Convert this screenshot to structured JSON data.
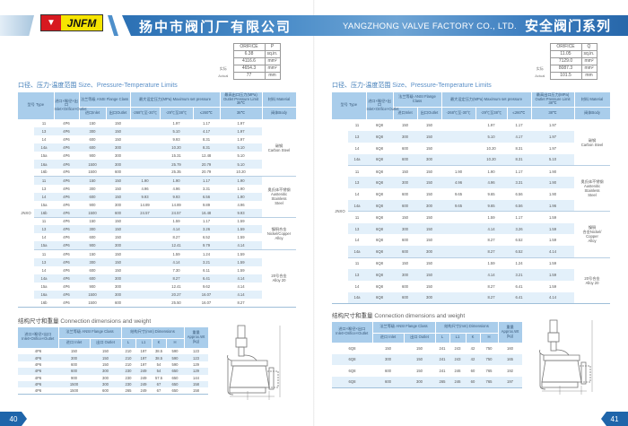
{
  "header": {
    "brand": "JNFM",
    "company_cn": "扬中市阀门厂有限公司",
    "company_en": "YANGZHONG VALVE FACTORY CO., LTD.",
    "series_cn": "安全阀门系列"
  },
  "colors": {
    "accent": "#2a6fb3",
    "table_header": "#a9cdeb",
    "row_alt": "#e3f0fa"
  },
  "pages": [
    {
      "number": "40",
      "orifice": {
        "rows": [
          [
            "ORIFICE",
            "P"
          ],
          [
            "6.38",
            "sq.in."
          ],
          [
            "4116.6",
            "mm²"
          ],
          [
            "4654.3",
            "mm²"
          ],
          [
            "77",
            "mm"
          ]
        ],
        "labels": [
          "",
          "",
          "",
          "实际",
          "Actual"
        ]
      },
      "limits_title_cn": "口径、压力-温度范围",
      "limits_title_en": "Size、Pressure-Temperature Limits",
      "model": "JNXO",
      "groups": [
        {
          "material": [
            "碳钢",
            "Carbon Steel"
          ],
          "rows": [
            [
              "11",
              "4P6",
              "150",
              "150",
              "",
              "1.97",
              "1.17",
              "1.97"
            ],
            [
              "13",
              "4P6",
              "300",
              "150",
              "",
              "5.10",
              "4.17",
              "1.97"
            ],
            [
              "14",
              "4P6",
              "600",
              "150",
              "",
              "9.93",
              "8.31",
              "1.97"
            ],
            [
              "14a",
              "4P6",
              "600",
              "300",
              "",
              "10.20",
              "8.31",
              "5.10"
            ],
            [
              "15a",
              "4P6",
              "900",
              "300",
              "",
              "15.31",
              "12.48",
              "5.10"
            ],
            [
              "16a",
              "4P6",
              "1500",
              "300",
              "",
              "25.79",
              "20.79",
              "5.10"
            ],
            [
              "16b",
              "4P6",
              "1500",
              "600",
              "",
              "25.35",
              "20.79",
              "10.20"
            ]
          ]
        },
        {
          "material": [
            "奥氏体不锈钢",
            "Austenitic",
            "Stainless",
            "Steel"
          ],
          "rows": [
            [
              "11",
              "4P6",
              "150",
              "150",
              "1.90",
              "1.90",
              "1.17",
              "1.90"
            ],
            [
              "13",
              "4P6",
              "300",
              "150",
              "4.96",
              "4.96",
              "3.31",
              "1.90"
            ],
            [
              "14",
              "4P6",
              "600",
              "150",
              "9.93",
              "9.93",
              "6.56",
              "1.90"
            ],
            [
              "15a",
              "4P6",
              "900",
              "300",
              "14.89",
              "14.89",
              "9.89",
              "4.96"
            ],
            [
              "16b",
              "4P6",
              "1500",
              "600",
              "24.57",
              "24.57",
              "16.48",
              "9.93"
            ]
          ]
        },
        {
          "material": [
            "镍铜合金",
            "Nickel/Copper",
            "Alloy"
          ],
          "rows": [
            [
              "11",
              "4P6",
              "150",
              "150",
              "",
              "1.59",
              "1.17",
              "1.59"
            ],
            [
              "13",
              "4P6",
              "300",
              "150",
              "",
              "4.14",
              "3.26",
              "1.59"
            ],
            [
              "14",
              "4P6",
              "600",
              "150",
              "",
              "8.27",
              "6.52",
              "1.59"
            ],
            [
              "15a",
              "4P6",
              "900",
              "300",
              "",
              "12.41",
              "9.79",
              "4.14"
            ]
          ]
        },
        {
          "material": [
            "20号合金",
            "Alloy 20"
          ],
          "rows": [
            [
              "11",
              "4P6",
              "150",
              "150",
              "",
              "1.59",
              "1.24",
              "1.59"
            ],
            [
              "13",
              "4P6",
              "300",
              "150",
              "",
              "4.14",
              "3.21",
              "1.59"
            ],
            [
              "14",
              "4P6",
              "600",
              "150",
              "",
              "7.30",
              "6.11",
              "1.59"
            ],
            [
              "14a",
              "4P6",
              "600",
              "300",
              "",
              "8.27",
              "6.41",
              "4.14"
            ],
            [
              "15a",
              "4P6",
              "900",
              "300",
              "",
              "12.41",
              "9.62",
              "4.14"
            ],
            [
              "16a",
              "4P6",
              "1500",
              "300",
              "",
              "20.27",
              "16.07",
              "4.14"
            ],
            [
              "16b",
              "4P6",
              "1500",
              "600",
              "",
              "25.50",
              "16.07",
              "8.27"
            ]
          ]
        }
      ],
      "dims_title_cn": "结构尺寸和重量",
      "dims_title_en": "Connection dimensions and weight",
      "dims": [
        [
          "4P6",
          "150",
          "150",
          "210",
          "197",
          "38.5",
          "590",
          "123"
        ],
        [
          "4P6",
          "300",
          "150",
          "210",
          "197",
          "38.5",
          "590",
          "123"
        ],
        [
          "4P6",
          "600",
          "150",
          "210",
          "197",
          "54",
          "590",
          "129"
        ],
        [
          "4P6",
          "600",
          "300",
          "230",
          "249",
          "54",
          "650",
          "129"
        ],
        [
          "4P6",
          "900",
          "300",
          "230",
          "249",
          "57.5",
          "650",
          "144"
        ],
        [
          "4P6",
          "1500",
          "300",
          "230",
          "249",
          "67",
          "650",
          "158"
        ],
        [
          "4P6",
          "1500",
          "600",
          "265",
          "249",
          "67",
          "650",
          "158"
        ]
      ]
    },
    {
      "number": "41",
      "orifice": {
        "rows": [
          [
            "ORIFICE",
            "Q"
          ],
          [
            "11.05",
            "sq.in."
          ],
          [
            "7129.0",
            "mm²"
          ],
          [
            "8087.3",
            "mm²"
          ],
          [
            "101.5",
            "mm"
          ]
        ],
        "labels": [
          "",
          "",
          "",
          "实际",
          "Actual"
        ]
      },
      "limits_title_cn": "口径、压力-温度范围",
      "limits_title_en": "Size、Pressure-Temperature Limits",
      "model": "JNXO",
      "groups": [
        {
          "material": [
            "碳钢",
            "Carbon Steel"
          ],
          "rows": [
            [
              "11",
              "6Q8",
              "150",
              "150",
              "",
              "1.97",
              "1.17",
              "1.97"
            ],
            [
              "13",
              "6Q8",
              "300",
              "150",
              "",
              "5.10",
              "4.17",
              "1.97"
            ],
            [
              "14",
              "6Q8",
              "600",
              "150",
              "",
              "10.20",
              "8.31",
              "1.97"
            ],
            [
              "14a",
              "6Q8",
              "600",
              "300",
              "",
              "10.20",
              "8.31",
              "5.10"
            ]
          ]
        },
        {
          "material": [
            "奥氏体不锈钢",
            "Austenitic",
            "Stainless",
            "Steel"
          ],
          "rows": [
            [
              "11",
              "6Q8",
              "150",
              "150",
              "1.90",
              "1.90",
              "1.17",
              "1.90"
            ],
            [
              "13",
              "6Q8",
              "300",
              "150",
              "4.96",
              "4.96",
              "3.31",
              "1.90"
            ],
            [
              "14",
              "6Q8",
              "600",
              "150",
              "9.65",
              "9.65",
              "6.56",
              "1.90"
            ],
            [
              "14a",
              "6Q8",
              "600",
              "300",
              "9.65",
              "9.65",
              "6.56",
              "1.96"
            ]
          ]
        },
        {
          "material": [
            "镍铜",
            "合金Nickel/",
            "Copper",
            "Alloy"
          ],
          "rows": [
            [
              "11",
              "6Q8",
              "150",
              "150",
              "",
              "1.59",
              "1.17",
              "1.59"
            ],
            [
              "13",
              "6Q8",
              "300",
              "150",
              "",
              "4.14",
              "3.26",
              "1.59"
            ],
            [
              "14",
              "6Q8",
              "600",
              "150",
              "",
              "8.27",
              "6.52",
              "1.59"
            ],
            [
              "14a",
              "6Q8",
              "600",
              "300",
              "",
              "8.27",
              "6.52",
              "4.14"
            ]
          ]
        },
        {
          "material": [
            "20号合金",
            "Alloy 20"
          ],
          "rows": [
            [
              "11",
              "6Q8",
              "150",
              "150",
              "",
              "1.59",
              "1.24",
              "1.59"
            ],
            [
              "13",
              "6Q8",
              "300",
              "150",
              "",
              "4.14",
              "3.21",
              "1.59"
            ],
            [
              "14",
              "6Q8",
              "600",
              "150",
              "",
              "8.27",
              "6.41",
              "1.59"
            ],
            [
              "14a",
              "6Q8",
              "600",
              "300",
              "",
              "8.27",
              "6.41",
              "4.14"
            ]
          ]
        }
      ],
      "dims_title_cn": "结构尺寸和重量",
      "dims_title_en": "Connection dimensions and weight",
      "dims": [
        [
          "6Q8",
          "150",
          "150",
          "241",
          "243",
          "42",
          "750",
          "160"
        ],
        [
          "6Q8",
          "300",
          "150",
          "241",
          "243",
          "42",
          "750",
          "165"
        ],
        [
          "6Q8",
          "600",
          "150",
          "241",
          "246",
          "60",
          "765",
          "192"
        ],
        [
          "6Q8",
          "600",
          "300",
          "265",
          "246",
          "60",
          "765",
          "197"
        ]
      ]
    }
  ],
  "limits_headers": {
    "type": "型号 Type",
    "size": "进口×喉径×出口 Inlet×Orifice×Outlet",
    "flange": "法兰等级 ANSI Flange Class",
    "inlet": "进口Inlet",
    "outlet": "出口Outlet",
    "max_set": "最大设定压力(MPa) Maximum set pressure",
    "t1": "-268℃至-30℃",
    "t2": "-29℃至38℃",
    "t3": "≤260℃",
    "outlet_limit": "最高出口压力(MPa) Outlet Pressure Limit 38℃",
    "t4": "38℃",
    "material": "材料 Material",
    "body": "阀体Body"
  },
  "dims_headers": {
    "size": "进口×喉径×出口 Inlet×Orifice×Outlet",
    "flange": "法兰等级 ANSI Flange Class",
    "inlet": "进口 Inlet",
    "outlet": "出口 Outlet",
    "dims": "结构尺寸(mm) Dimensions",
    "L": "L",
    "L1": "L1",
    "K": "K",
    "H": "H",
    "weight": "重量 Approx.Wt (kg)"
  }
}
